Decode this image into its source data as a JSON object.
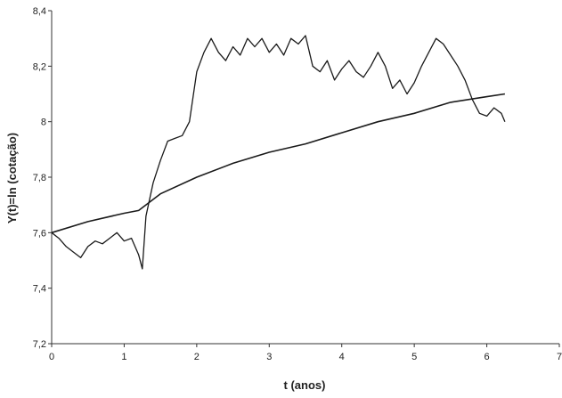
{
  "chart_data": {
    "type": "line",
    "title": "",
    "xlabel": "t (anos)",
    "ylabel": "Y(t)=ln (cotação)",
    "xlim": [
      0,
      7
    ],
    "ylim": [
      7.2,
      8.4
    ],
    "x_ticks": [
      "0",
      "1",
      "2",
      "3",
      "4",
      "5",
      "6",
      "7"
    ],
    "y_ticks": [
      "7,2",
      "7,4",
      "7,6",
      "7,8",
      "8",
      "8,2",
      "8,4"
    ],
    "grid": false,
    "legend": "none",
    "line_color": "#1a1a1a",
    "series": [
      {
        "x": [
          0,
          0.1,
          0.2,
          0.3,
          0.4,
          0.5,
          0.6,
          0.7,
          0.8,
          0.9,
          1.0,
          1.1,
          1.2,
          1.25,
          1.3,
          1.4,
          1.5,
          1.6,
          1.7,
          1.8,
          1.9,
          2.0,
          2.1,
          2.2,
          2.3,
          2.4,
          2.5,
          2.6,
          2.7,
          2.8,
          2.9,
          3.0,
          3.1,
          3.2,
          3.3,
          3.4,
          3.5,
          3.6,
          3.7,
          3.8,
          3.9,
          4.0,
          4.1,
          4.2,
          4.3,
          4.4,
          4.5,
          4.6,
          4.7,
          4.8,
          4.9,
          5.0,
          5.1,
          5.2,
          5.3,
          5.4,
          5.5,
          5.6,
          5.7,
          5.8,
          5.9,
          6.0,
          6.1,
          6.2,
          6.25
        ],
        "y": [
          7.6,
          7.58,
          7.55,
          7.53,
          7.51,
          7.55,
          7.57,
          7.56,
          7.58,
          7.6,
          7.57,
          7.58,
          7.52,
          7.47,
          7.66,
          7.78,
          7.86,
          7.93,
          7.94,
          7.95,
          8.0,
          8.18,
          8.25,
          8.3,
          8.25,
          8.22,
          8.27,
          8.24,
          8.3,
          8.27,
          8.3,
          8.25,
          8.28,
          8.24,
          8.3,
          8.28,
          8.31,
          8.2,
          8.18,
          8.22,
          8.15,
          8.19,
          8.22,
          8.18,
          8.16,
          8.2,
          8.25,
          8.2,
          8.12,
          8.15,
          8.1,
          8.14,
          8.2,
          8.25,
          8.3,
          8.28,
          8.24,
          8.2,
          8.15,
          8.08,
          8.03,
          8.02,
          8.05,
          8.03,
          8.0
        ]
      },
      {
        "x": [
          0,
          0.5,
          1.0,
          1.2,
          1.5,
          2.0,
          2.5,
          3.0,
          3.5,
          4.0,
          4.5,
          5.0,
          5.5,
          6.0,
          6.25
        ],
        "y": [
          7.6,
          7.64,
          7.67,
          7.68,
          7.74,
          7.8,
          7.85,
          7.89,
          7.92,
          7.96,
          8.0,
          8.03,
          8.07,
          8.09,
          8.1
        ]
      }
    ]
  }
}
